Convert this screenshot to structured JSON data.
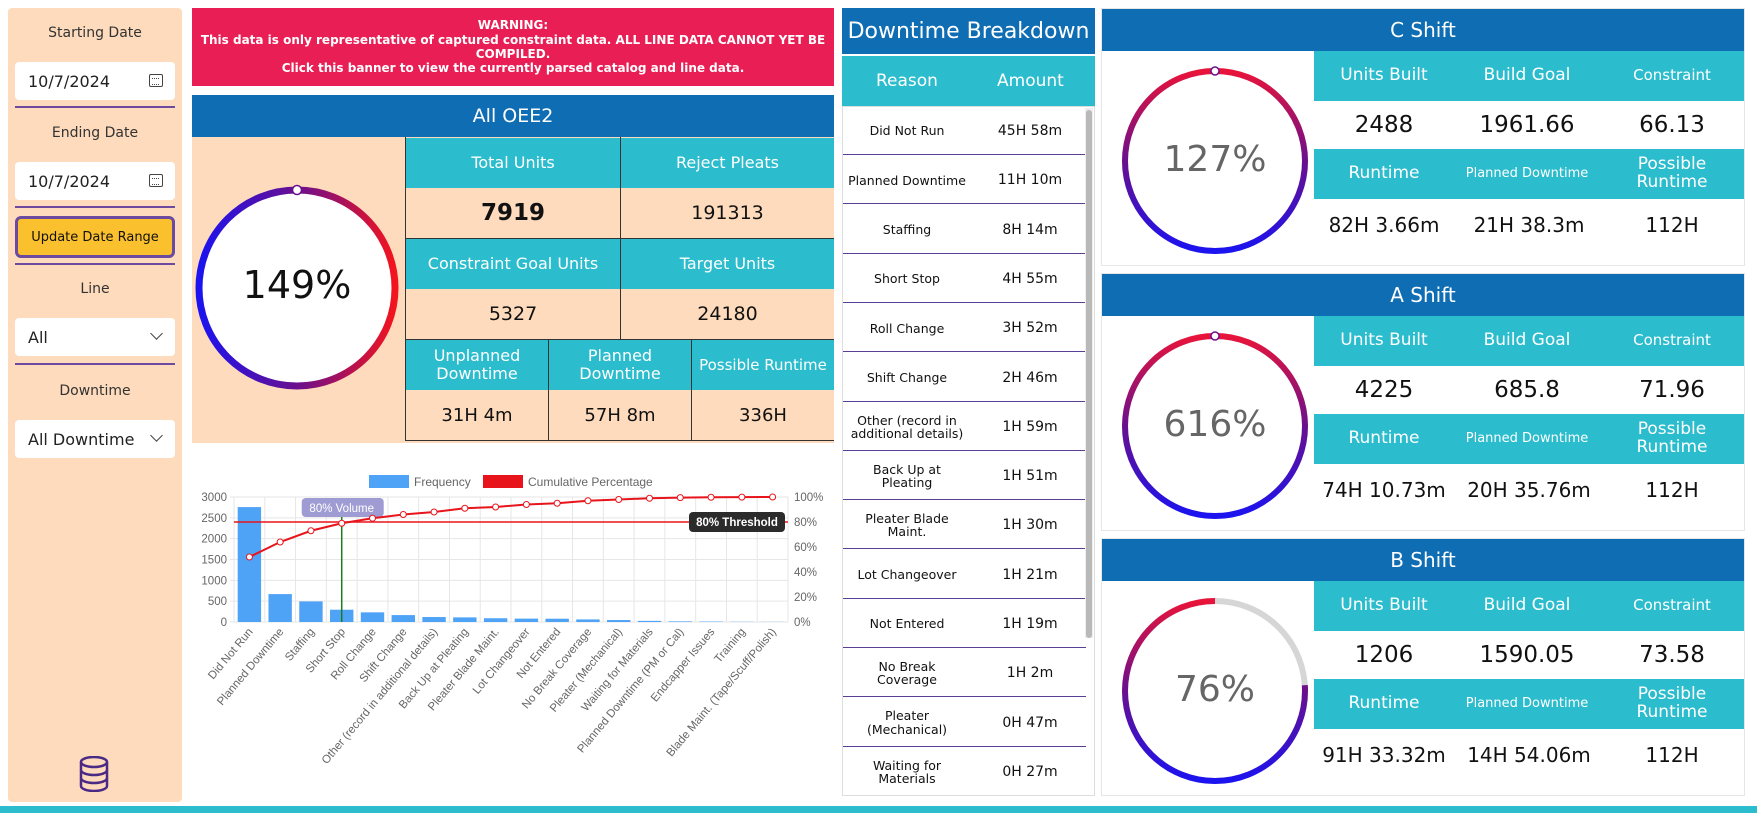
{
  "sidebar": {
    "starting_date_label": "Starting Date",
    "starting_date_value": "10/7/2024",
    "ending_date_label": "Ending Date",
    "ending_date_value": "10/7/2024",
    "update_button": "Update Date Range",
    "line_label": "Line",
    "line_value": "All",
    "downtime_label": "Downtime",
    "downtime_value": "All Downtime",
    "icons": {
      "calendar": "calendar-icon",
      "chevron": "chevron-down-icon",
      "database": "database-icon"
    }
  },
  "warning": {
    "line1": "WARNING:",
    "line2": "This data is only representative of captured constraint data. ALL LINE DATA CANNOT YET BE COMPILED.",
    "line3": "Click this banner to view the currently parsed catalog and line data.",
    "color": "#e91e54"
  },
  "oee": {
    "title": "All OEE2",
    "percent": "149%",
    "total_units_label": "Total Units",
    "total_units": "7919",
    "reject_pleats_label": "Reject Pleats",
    "reject_pleats": "191313",
    "constraint_goal_label": "Constraint Goal Units",
    "constraint_goal": "5327",
    "target_units_label": "Target Units",
    "target_units": "24180",
    "unplanned_label": "Unplanned Downtime",
    "unplanned": "31H 4m",
    "planned_label": "Planned Downtime",
    "planned": "57H 8m",
    "possible_label": "Possible Runtime",
    "possible": "336H"
  },
  "chart_data": {
    "type": "bar",
    "legend": [
      "Frequency",
      "Cumulative Percentage"
    ],
    "legend_position": "top",
    "categories": [
      "Did Not Run",
      "Planned Downtime",
      "Staffing",
      "Short Stop",
      "Roll Change",
      "Shift Change",
      "Other (record in additional details)",
      "Back Up at Pleating",
      "Pleater Blade Maint.",
      "Lot Changeover",
      "Not Entered",
      "No Break Coverage",
      "Pleater (Mechanical)",
      "Waiting for Materials",
      "Planned Downtime (PM or Cal)",
      "Endcapper Issues",
      "Training",
      "Blade Maint. (Tape/Scuff/Polish)"
    ],
    "series": [
      {
        "name": "Frequency",
        "type": "bar",
        "axis": "left",
        "color": "#4fa3f7",
        "values": [
          2758,
          670,
          494,
          295,
          232,
          166,
          119,
          111,
          90,
          81,
          79,
          62,
          47,
          27,
          15,
          10,
          5,
          3
        ]
      },
      {
        "name": "Cumulative Percentage",
        "type": "line",
        "axis": "right",
        "color": "#e8141c",
        "values": [
          52,
          64,
          73,
          79,
          83,
          86,
          88,
          91,
          92,
          94,
          95,
          97,
          98,
          99,
          99.5,
          99.8,
          99.9,
          100
        ]
      }
    ],
    "y_left": {
      "ticks": [
        "3000",
        "2500",
        "2000",
        "1500",
        "1000",
        "500",
        "0"
      ],
      "range": [
        0,
        3000
      ]
    },
    "y_right": {
      "ticks": [
        "100%",
        "80%",
        "60%",
        "40%",
        "20%",
        "0%"
      ],
      "range": [
        0,
        100
      ]
    },
    "threshold_value": 80,
    "threshold_label": "80% Threshold",
    "volume_label": "80% Volume",
    "volume_category_index": 3,
    "grid": true
  },
  "downtime": {
    "title": "Downtime Breakdown",
    "col_reason": "Reason",
    "col_amount": "Amount",
    "rows": [
      {
        "reason": "Did Not Run",
        "amount": "45H 58m"
      },
      {
        "reason": "Planned Downtime",
        "amount": "11H 10m"
      },
      {
        "reason": "Staffing",
        "amount": "8H 14m"
      },
      {
        "reason": "Short Stop",
        "amount": "4H 55m"
      },
      {
        "reason": "Roll Change",
        "amount": "3H 52m"
      },
      {
        "reason": "Shift Change",
        "amount": "2H 46m"
      },
      {
        "reason": "Other (record in additional details)",
        "amount": "1H 59m"
      },
      {
        "reason": "Back Up at Pleating",
        "amount": "1H 51m"
      },
      {
        "reason": "Pleater Blade Maint.",
        "amount": "1H 30m"
      },
      {
        "reason": "Lot Changeover",
        "amount": "1H 21m"
      },
      {
        "reason": "Not Entered",
        "amount": "1H 19m"
      },
      {
        "reason": "No Break Coverage",
        "amount": "1H 2m"
      },
      {
        "reason": "Pleater (Mechanical)",
        "amount": "0H 47m"
      },
      {
        "reason": "Waiting for Materials",
        "amount": "0H 27m"
      }
    ]
  },
  "labels": {
    "units_built": "Units Built",
    "build_goal": "Build Goal",
    "constraint": "Constraint",
    "runtime": "Runtime",
    "planned_downtime": "Planned Downtime",
    "possible_runtime": "Possible Runtime"
  },
  "shifts": [
    {
      "title": "C Shift",
      "percent": "127%",
      "gauge_fill": 1.0,
      "units_built": "2488",
      "build_goal": "1961.66",
      "constraint": "66.13",
      "runtime": "82H 3.66m",
      "planned_downtime": "21H 38.3m",
      "possible_runtime": "112H"
    },
    {
      "title": "A Shift",
      "percent": "616%",
      "gauge_fill": 1.0,
      "units_built": "4225",
      "build_goal": "685.8",
      "constraint": "71.96",
      "runtime": "74H 10.73m",
      "planned_downtime": "20H 35.76m",
      "possible_runtime": "112H"
    },
    {
      "title": "B Shift",
      "percent": "76%",
      "gauge_fill": 0.76,
      "units_built": "1206",
      "build_goal": "1590.05",
      "constraint": "73.58",
      "runtime": "91H 33.32m",
      "planned_downtime": "14H 54.06m",
      "possible_runtime": "112H"
    }
  ],
  "colors": {
    "header_blue": "#0f6db3",
    "teal": "#2bbccd",
    "peach": "#fddbbc",
    "accent_yellow": "#fbc02d",
    "purple": "#6b4aa0"
  }
}
